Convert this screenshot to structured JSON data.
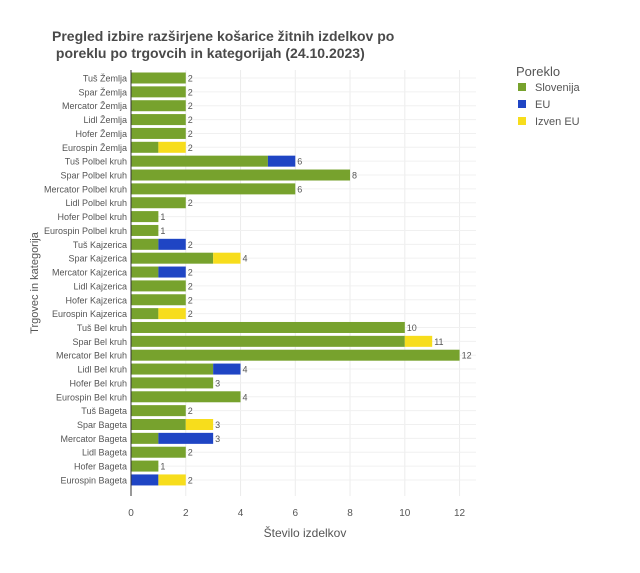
{
  "chart_data": {
    "type": "bar",
    "orientation": "horizontal",
    "stacked": true,
    "title_line1": "Pregled izbire razširjene košarice žitnih izdelkov po",
    "title_line2": " poreklu po trgovcih in kategorijah (24.10.2023)",
    "xlabel": "Število izdelkov",
    "ylabel": "Trgovec in kategorija",
    "xlim": [
      0,
      12.6
    ],
    "xticks": [
      0,
      2,
      4,
      6,
      8,
      10,
      12
    ],
    "grid": true,
    "legend": {
      "title": "Poreklo",
      "position": "top-right"
    },
    "categories": [
      "Tuš Žemlja",
      "Spar Žemlja",
      "Mercator Žemlja",
      "Lidl Žemlja",
      "Hofer Žemlja",
      "Eurospin Žemlja",
      "Tuš Polbel kruh",
      "Spar Polbel kruh",
      "Mercator Polbel kruh",
      "Lidl Polbel kruh",
      "Hofer Polbel kruh",
      "Eurospin Polbel kruh",
      "Tuš Kajzerica",
      "Spar Kajzerica",
      "Mercator Kajzerica",
      "Lidl Kajzerica",
      "Hofer Kajzerica",
      "Eurospin Kajzerica",
      "Tuš Bel kruh",
      "Spar Bel kruh",
      "Mercator Bel kruh",
      "Lidl Bel kruh",
      "Hofer Bel kruh",
      "Eurospin Bel kruh",
      "Tuš Bageta",
      "Spar Bageta",
      "Mercator Bageta",
      "Lidl Bageta",
      "Hofer Bageta",
      "Eurospin Bageta"
    ],
    "series": [
      {
        "name": "Slovenija",
        "color": "#77a22d",
        "values": [
          2,
          2,
          2,
          2,
          2,
          1,
          5,
          8,
          6,
          2,
          1,
          1,
          1,
          3,
          1,
          2,
          2,
          1,
          10,
          10,
          12,
          3,
          3,
          4,
          2,
          2,
          1,
          2,
          1,
          0
        ]
      },
      {
        "name": "EU",
        "color": "#1f45c4",
        "values": [
          0,
          0,
          0,
          0,
          0,
          0,
          1,
          0,
          0,
          0,
          0,
          0,
          1,
          0,
          1,
          0,
          0,
          0,
          0,
          0,
          0,
          1,
          0,
          0,
          0,
          0,
          2,
          0,
          0,
          1
        ]
      },
      {
        "name": "Izven EU",
        "color": "#f7dd1c",
        "values": [
          0,
          0,
          0,
          0,
          0,
          1,
          0,
          0,
          0,
          0,
          0,
          0,
          0,
          1,
          0,
          0,
          0,
          1,
          0,
          1,
          0,
          0,
          0,
          0,
          0,
          1,
          0,
          0,
          0,
          1
        ]
      }
    ],
    "totals": [
      2,
      2,
      2,
      2,
      2,
      2,
      6,
      8,
      6,
      2,
      1,
      1,
      2,
      4,
      2,
      2,
      2,
      2,
      10,
      11,
      12,
      4,
      3,
      4,
      2,
      3,
      3,
      2,
      1,
      2
    ]
  }
}
